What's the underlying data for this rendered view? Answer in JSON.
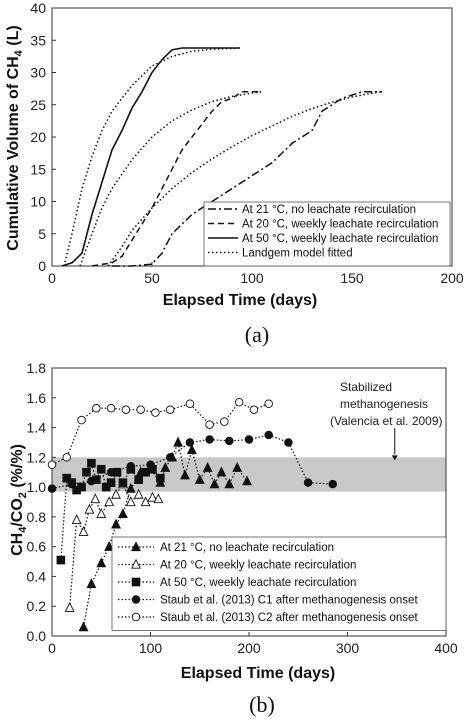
{
  "chart_data": [
    {
      "type": "line",
      "panel_label": "(a)",
      "xlabel": "Elapsed Time (days)",
      "ylabel": "Cumulative Volume of CH",
      "ylabel_sub": "4",
      "ylabel_tail": " (L)",
      "xlim": [
        0,
        200
      ],
      "ylim": [
        0,
        40
      ],
      "xticks": [
        0,
        50,
        100,
        150,
        200
      ],
      "yticks": [
        0,
        5,
        10,
        15,
        20,
        25,
        30,
        35,
        40
      ],
      "legend_position": "bottom-right",
      "series": [
        {
          "name": "At 21 °C, no leachate recirculation",
          "style": "dashdot",
          "x": [
            30,
            40,
            50,
            55,
            60,
            65,
            70,
            80,
            90,
            100,
            110,
            120,
            125,
            130,
            135,
            140,
            145,
            150,
            155,
            160,
            165
          ],
          "y": [
            0,
            0,
            0.3,
            2,
            5,
            6.5,
            8,
            10,
            12,
            14,
            16,
            19,
            20,
            21,
            24,
            25,
            26,
            26.5,
            27,
            27,
            27
          ]
        },
        {
          "name": "At 20 °C, weekly leachate recirculation",
          "style": "dashed",
          "x": [
            20,
            30,
            35,
            40,
            50,
            55,
            60,
            65,
            70,
            75,
            80,
            85,
            90,
            95,
            100,
            105
          ],
          "y": [
            0,
            0.5,
            1.5,
            4,
            9,
            12,
            15,
            18,
            20,
            22,
            24,
            25.5,
            26,
            27,
            27,
            27
          ]
        },
        {
          "name": "At 50 °C, weekly leachate recirculation",
          "style": "solid",
          "x": [
            5,
            10,
            15,
            20,
            25,
            30,
            35,
            40,
            45,
            50,
            55,
            60,
            65,
            70,
            80,
            94
          ],
          "y": [
            0,
            0.5,
            2,
            8,
            13,
            18,
            21,
            24.5,
            27,
            30,
            32,
            33.5,
            33.8,
            33.8,
            33.8,
            33.8
          ]
        },
        {
          "name": "Landgem model fitted",
          "style": "dotted",
          "segments": [
            {
              "x": [
                6,
                10,
                15,
                20,
                25,
                30,
                40,
                50,
                60,
                70,
                80,
                94
              ],
              "y": [
                0,
                5,
                12,
                17,
                21,
                24,
                28,
                31,
                32.5,
                33.3,
                33.6,
                33.8
              ]
            },
            {
              "x": [
                14,
                20,
                25,
                30,
                40,
                50,
                60,
                70,
                80,
                90,
                100,
                105
              ],
              "y": [
                0,
                5,
                9,
                12,
                16.5,
                20,
                22.5,
                24.2,
                25.5,
                26.3,
                26.8,
                27
              ]
            },
            {
              "x": [
                28,
                35,
                40,
                50,
                60,
                70,
                80,
                90,
                100,
                110,
                120,
                130,
                140,
                150,
                160,
                165
              ],
              "y": [
                0,
                3,
                5.5,
                9,
                12,
                14.5,
                16.6,
                18.5,
                20.2,
                21.7,
                23.2,
                24.4,
                25.4,
                26.2,
                26.8,
                27
              ]
            }
          ]
        }
      ]
    },
    {
      "type": "scatter",
      "panel_label": "(b)",
      "xlabel": "Elapsed Time (days)",
      "ylabel": "CH",
      "ylabel_sub1": "4",
      "ylabel_mid": "/CO",
      "ylabel_sub2": "2",
      "ylabel_tail": " (%/%)",
      "xlim": [
        0,
        400
      ],
      "ylim": [
        0,
        1.8
      ],
      "xticks": [
        0,
        100,
        200,
        300,
        400
      ],
      "yticks": [
        0.0,
        0.2,
        0.4,
        0.6,
        0.8,
        1.0,
        1.2,
        1.4,
        1.6,
        1.8
      ],
      "band": [
        0.97,
        1.2
      ],
      "annotation_lines": [
        "Stabilized",
        "methanogenesis",
        "(Valencia et al. 2009)"
      ],
      "legend_position": "bottom-right",
      "series": [
        {
          "name": "At 21 °C, no leachate recirculation",
          "marker": "triangle-filled",
          "x": [
            32,
            40,
            50,
            58,
            65,
            72,
            80,
            90,
            100,
            110,
            115,
            122,
            128,
            135,
            142,
            150,
            158,
            165,
            172,
            180,
            188,
            198
          ],
          "y": [
            0.06,
            0.35,
            0.49,
            0.6,
            0.75,
            0.82,
            0.99,
            1.1,
            1.12,
            1.03,
            1.13,
            1.2,
            1.3,
            1.08,
            1.25,
            1.05,
            1.13,
            1.02,
            1.1,
            1.02,
            1.13,
            1.04
          ]
        },
        {
          "name": "At 20 °C, weekly leachate recirculation",
          "marker": "triangle-open",
          "x": [
            18,
            25,
            32,
            38,
            44,
            50,
            58,
            65,
            72,
            80,
            88,
            95,
            102,
            108
          ],
          "y": [
            0.19,
            0.78,
            0.7,
            0.85,
            0.92,
            0.82,
            0.9,
            0.95,
            1.02,
            0.9,
            0.95,
            0.9,
            0.93,
            0.92
          ]
        },
        {
          "name": "At 50 °C, weekly leachate recirculation",
          "marker": "square-filled",
          "x": [
            9,
            15,
            20,
            25,
            30,
            35,
            40,
            45,
            50,
            55,
            60,
            66,
            72,
            80,
            88,
            95,
            102,
            110
          ],
          "y": [
            0.51,
            1.06,
            1.03,
            0.98,
            1.0,
            1.1,
            1.16,
            1.05,
            1.12,
            1.0,
            1.03,
            1.1,
            1.03,
            1.12,
            1.05,
            1.1,
            1.12,
            1.06
          ]
        },
        {
          "name": "Staub et al. (2013) C1 after methanogenesis onset",
          "marker": "circle-filled",
          "x": [
            0,
            20,
            40,
            60,
            80,
            100,
            120,
            140,
            160,
            180,
            200,
            220,
            240,
            260,
            285
          ],
          "y": [
            0.99,
            1.02,
            1.04,
            1.1,
            1.14,
            1.15,
            1.2,
            1.3,
            1.32,
            1.31,
            1.32,
            1.35,
            1.3,
            1.03,
            1.02
          ]
        },
        {
          "name": "Staub et al. (2013) C2 after methanogenesis onset",
          "marker": "circle-open",
          "x": [
            0,
            15,
            30,
            45,
            60,
            75,
            90,
            105,
            120,
            140,
            160,
            175,
            190,
            205,
            220
          ],
          "y": [
            1.15,
            1.2,
            1.45,
            1.53,
            1.53,
            1.52,
            1.52,
            1.5,
            1.52,
            1.56,
            1.42,
            1.44,
            1.57,
            1.52,
            1.56
          ]
        }
      ]
    }
  ]
}
